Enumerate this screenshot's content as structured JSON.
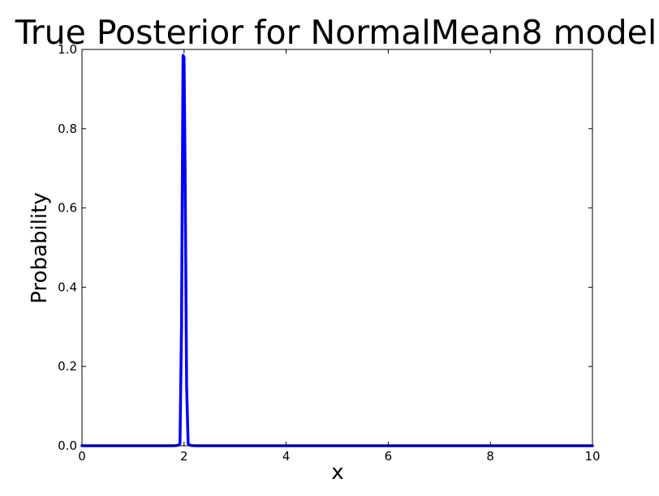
{
  "chart_data": {
    "type": "line",
    "title": "True Posterior for NormalMean8 model",
    "xlabel": "x",
    "ylabel": "Probability",
    "xlim": [
      0,
      10
    ],
    "ylim": [
      0,
      1.0
    ],
    "x_ticks": [
      "0",
      "2",
      "4",
      "6",
      "8",
      "10"
    ],
    "y_ticks": [
      "0.0",
      "0.2",
      "0.4",
      "0.6",
      "0.8",
      "1.0"
    ],
    "grid": false,
    "legend": "none",
    "series_color": "#0000ff",
    "series": [
      {
        "x": [
          0,
          0.5,
          1.0,
          1.5,
          1.8,
          1.88,
          1.92,
          1.95,
          1.98,
          2.0,
          2.02,
          2.05,
          2.08,
          2.12,
          2.2,
          2.5,
          3,
          4,
          5,
          6,
          7,
          8,
          9,
          10
        ],
        "y": [
          0,
          0,
          0,
          0,
          0,
          0.001,
          0.005,
          0.3,
          0.985,
          0.98,
          0.7,
          0.15,
          0.005,
          0.001,
          0,
          0,
          0,
          0,
          0,
          0,
          0,
          0,
          0,
          0
        ]
      }
    ]
  }
}
